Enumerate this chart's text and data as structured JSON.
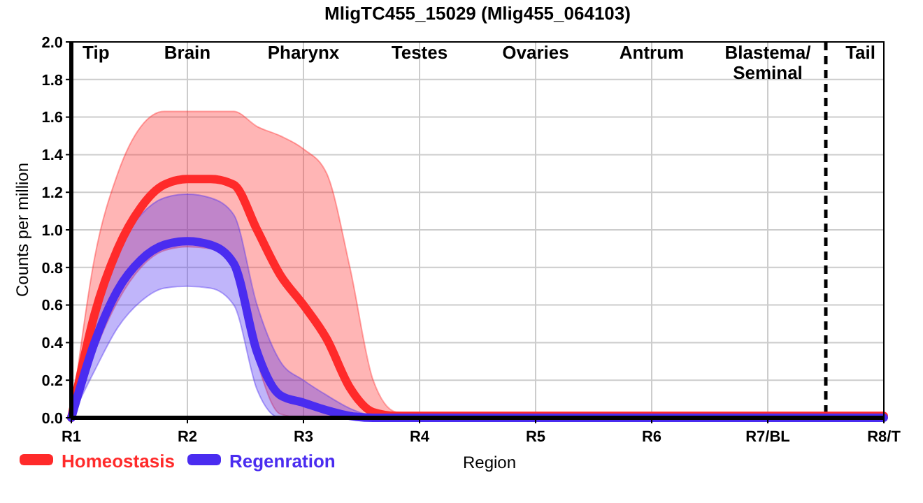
{
  "chart_data": {
    "type": "line",
    "title": "MligTC455_15029 (Mlig455_064103)",
    "xlabel": "Region",
    "ylabel": "Counts per million",
    "categories": [
      "R1",
      null,
      null,
      null,
      null,
      "R2",
      null,
      null,
      null,
      null,
      "R3",
      null,
      null,
      null,
      null,
      "R4",
      null,
      null,
      null,
      null,
      "R5",
      null,
      null,
      null,
      null,
      "R6",
      null,
      null,
      null,
      null,
      "R7/BL",
      null,
      null,
      null,
      null,
      "R8/T"
    ],
    "series": [
      {
        "name": "Homeostasis",
        "color": "#ff2a2a",
        "values": [
          0,
          0.55,
          0.9,
          1.12,
          1.24,
          1.27,
          1.27,
          1.24,
          1.0,
          0.76,
          0.6,
          0.42,
          0.16,
          0.03,
          0.01,
          0.01,
          0.01,
          0.01,
          0.01,
          0.01,
          0.01,
          0.01,
          0.01,
          0.01,
          0.01,
          0.01,
          0.01,
          0.01,
          0.01,
          0.01,
          0.01,
          0.01,
          0.01,
          0.01,
          0.01,
          0.01
        ],
        "upper": [
          0,
          0.85,
          1.3,
          1.55,
          1.63,
          1.63,
          1.63,
          1.63,
          1.55,
          1.5,
          1.43,
          1.3,
          0.8,
          0.2,
          0.03,
          0.02,
          0.02,
          0.02,
          0.02,
          0.02,
          0.02,
          0.02,
          0.02,
          0.02,
          0.02,
          0.02,
          0.02,
          0.02,
          0.02,
          0.02,
          0.02,
          0.02,
          0.02,
          0.02,
          0.02,
          0.02
        ],
        "lower": [
          0,
          0.35,
          0.62,
          0.8,
          0.89,
          0.91,
          0.9,
          0.82,
          0.3,
          0.02,
          0,
          0,
          0,
          0,
          0,
          0,
          0,
          0,
          0,
          0,
          0,
          0,
          0,
          0,
          0,
          0,
          0,
          0,
          0,
          0,
          0,
          0,
          0,
          0,
          0,
          0
        ]
      },
      {
        "name": "Regenration",
        "color": "#4a2cf0",
        "values": [
          0,
          0.4,
          0.68,
          0.84,
          0.92,
          0.94,
          0.92,
          0.82,
          0.35,
          0.12,
          0.08,
          0.04,
          0.01,
          0,
          0,
          0,
          0,
          0,
          0,
          0,
          0,
          0,
          0,
          0,
          0,
          0,
          0,
          0,
          0,
          0,
          0,
          0,
          0,
          0,
          0,
          0
        ],
        "upper": [
          0,
          0.55,
          0.9,
          1.08,
          1.17,
          1.19,
          1.17,
          1.08,
          0.6,
          0.3,
          0.2,
          0.12,
          0.05,
          0.01,
          0,
          0,
          0,
          0,
          0,
          0,
          0,
          0,
          0,
          0,
          0,
          0,
          0,
          0,
          0,
          0,
          0,
          0,
          0,
          0,
          0,
          0
        ],
        "lower": [
          0,
          0.25,
          0.48,
          0.62,
          0.69,
          0.7,
          0.69,
          0.6,
          0.15,
          0,
          0,
          0,
          0,
          0,
          0,
          0,
          0,
          0,
          0,
          0,
          0,
          0,
          0,
          0,
          0,
          0,
          0,
          0,
          0,
          0,
          0,
          0,
          0,
          0,
          0,
          0
        ]
      }
    ],
    "ylim": [
      0,
      2
    ],
    "yticks": [
      {
        "value": 0,
        "label": "0.0"
      },
      {
        "value": 0.2,
        "label": "0.2"
      },
      {
        "value": 0.4,
        "label": "0.4"
      },
      {
        "value": 0.6,
        "label": "0.6"
      },
      {
        "value": 0.8,
        "label": "0.8"
      },
      {
        "value": 1,
        "label": "1.0"
      },
      {
        "value": 1.2,
        "label": "1.2"
      },
      {
        "value": 1.4,
        "label": "1.4"
      },
      {
        "value": 1.6,
        "label": "1.6"
      },
      {
        "value": 1.8,
        "label": "1.8"
      },
      {
        "value": 2,
        "label": "2.0"
      }
    ],
    "annotations": [
      "Tip",
      "Brain",
      "Pharynx",
      "Testes",
      "Ovaries",
      "Antrum",
      "Blastema/\nSeminal",
      "Tail"
    ],
    "grid": true,
    "legend": "bottom left",
    "marker": "none",
    "line_style": "solid"
  }
}
